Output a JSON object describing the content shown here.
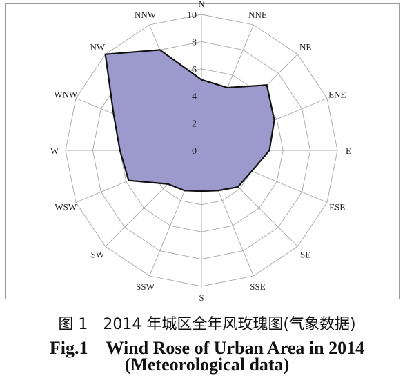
{
  "chart_data": {
    "type": "radar",
    "directions": [
      "N",
      "NNE",
      "NE",
      "ENE",
      "E",
      "ESE",
      "SE",
      "SSE",
      "S",
      "SSW",
      "SW",
      "WSW",
      "W",
      "WNW",
      "NW",
      "NNW"
    ],
    "values": [
      5.2,
      5.0,
      6.8,
      5.8,
      5.0,
      4.0,
      3.8,
      3.2,
      3.0,
      3.2,
      3.5,
      5.8,
      6.0,
      7.0,
      10.0,
      8.0
    ],
    "ticks": [
      "0",
      "2",
      "4",
      "6",
      "8",
      "10"
    ],
    "rlim": [
      0,
      10
    ],
    "grid": true,
    "fill_color": "#9c99cd",
    "line_color": "#111111",
    "grid_color": "#a6a6a6"
  },
  "caption": {
    "line_cn": "图 1　2014 年城区全年风玫瑰图(气象数据)",
    "line_en1": "Fig.1　Wind Rose of Urban Area in 2014",
    "line_en2": "(Meteorological data)"
  }
}
